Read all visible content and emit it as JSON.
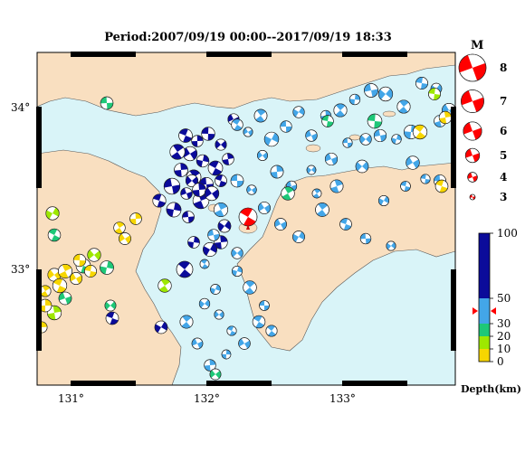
{
  "title": "Period:2007/09/19 00:00--2017/09/19 18:33",
  "map": {
    "lat_labels": [
      {
        "text": "34°",
        "lat": 34
      },
      {
        "text": "33°",
        "lat": 33
      }
    ],
    "lon_labels": [
      {
        "text": "131°",
        "lon": 131
      },
      {
        "text": "132°",
        "lon": 132
      },
      {
        "text": "133°",
        "lon": 133
      }
    ],
    "colors": {
      "land": "#f9dfc0",
      "sea": "#d9f4f8",
      "border": "#000000",
      "compression": "#ffffff"
    }
  },
  "magnitude_legend": {
    "title": "M",
    "items": [
      {
        "label": "8",
        "magnitude": 8
      },
      {
        "label": "7",
        "magnitude": 7
      },
      {
        "label": "6",
        "magnitude": 6
      },
      {
        "label": "5",
        "magnitude": 5
      },
      {
        "label": "4",
        "magnitude": 4
      },
      {
        "label": "3",
        "magnitude": 3
      }
    ],
    "color": "#ff0000"
  },
  "depth_scale": {
    "title": "Depth(km)",
    "ticks": [
      "100",
      "50",
      "30",
      "20",
      "10",
      "0"
    ],
    "tick_values": [
      100,
      50,
      30,
      20,
      10,
      0
    ],
    "bands": [
      {
        "from": 0,
        "to": 10,
        "color": "#f7d600"
      },
      {
        "from": 10,
        "to": 20,
        "color": "#9ee800"
      },
      {
        "from": 20,
        "to": 30,
        "color": "#1ec878"
      },
      {
        "from": 30,
        "to": 50,
        "color": "#43a6e8"
      },
      {
        "from": 50,
        "to": 100,
        "color": "#0b0b9a"
      }
    ],
    "marker_depth": 40,
    "marker_color": "#ff0000"
  }
}
